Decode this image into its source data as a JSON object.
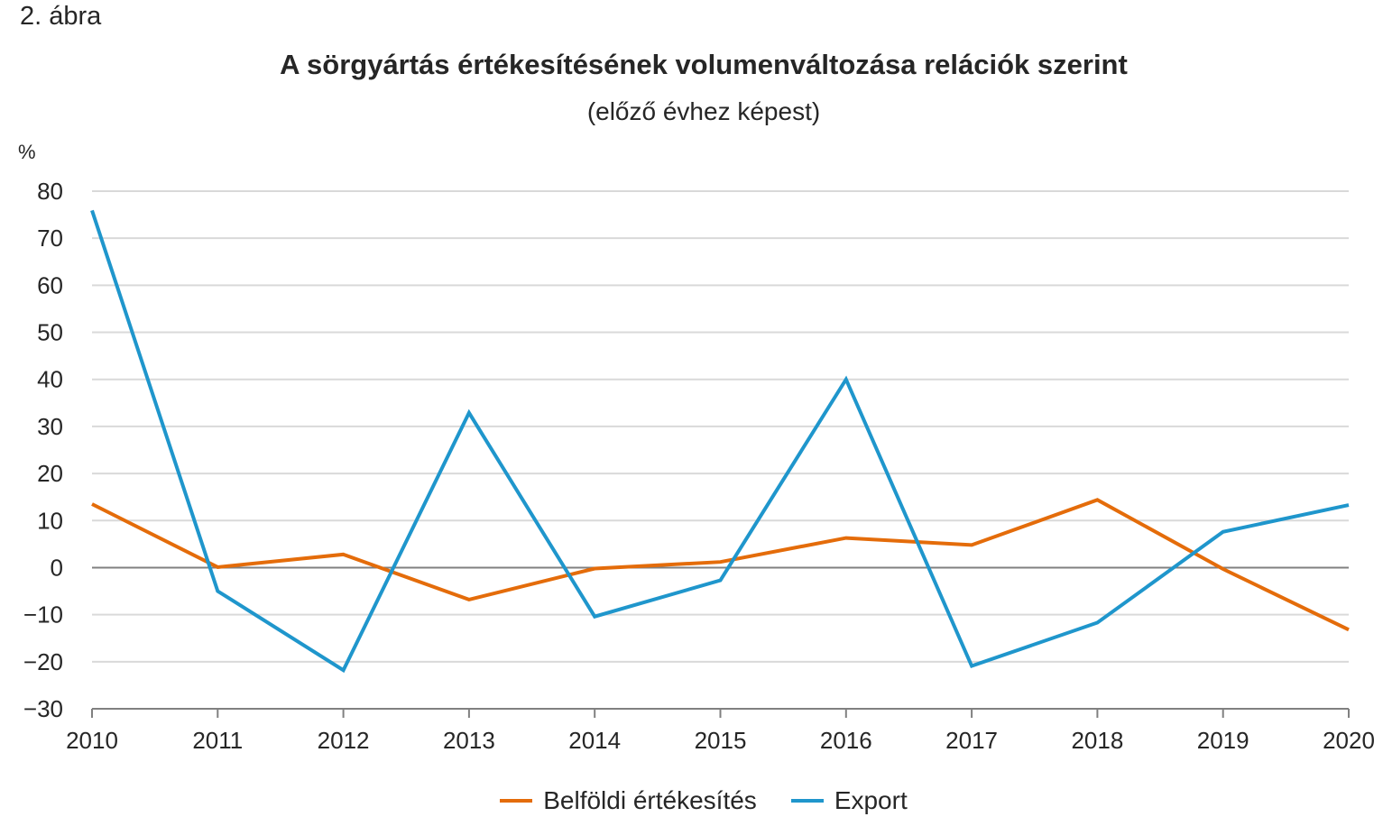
{
  "figure_label": "2. ábra",
  "colors": {
    "domestic": "#E46C0A",
    "export": "#1F96CC",
    "grid": "#D9D9D9",
    "zero_line": "#808080",
    "axis": "#808080",
    "text": "#262626"
  },
  "chart_data": {
    "type": "line",
    "title": "A sörgyártás értékesítésének volumenváltozása relációk szerint",
    "subtitle": "(előző évhez képest)",
    "ylabel": "%",
    "xlabel": "",
    "ylim": [
      -30,
      80
    ],
    "yticks": [
      80,
      70,
      60,
      50,
      40,
      30,
      20,
      10,
      0,
      -10,
      -20,
      -30
    ],
    "ytick_labels": [
      "80",
      "70",
      "60",
      "50",
      "40",
      "30",
      "20",
      "10",
      "0",
      "−10",
      "−20",
      "−30"
    ],
    "categories": [
      "2010",
      "2011",
      "2012",
      "2013",
      "2014",
      "2015",
      "2016",
      "2017",
      "2018",
      "2019",
      "2020"
    ],
    "series": [
      {
        "key": "domestic",
        "name": "Belföldi értékesítés",
        "values": [
          13.5,
          0.1,
          2.8,
          -6.8,
          -0.2,
          1.2,
          6.3,
          4.8,
          14.4,
          -0.3,
          -13.2
        ]
      },
      {
        "key": "export",
        "name": "Export",
        "values": [
          75.9,
          -5.0,
          -21.8,
          32.9,
          -10.4,
          -2.7,
          40.0,
          -20.9,
          -11.7,
          7.6,
          13.3
        ]
      }
    ],
    "grid": true,
    "legend_position": "bottom-center"
  }
}
